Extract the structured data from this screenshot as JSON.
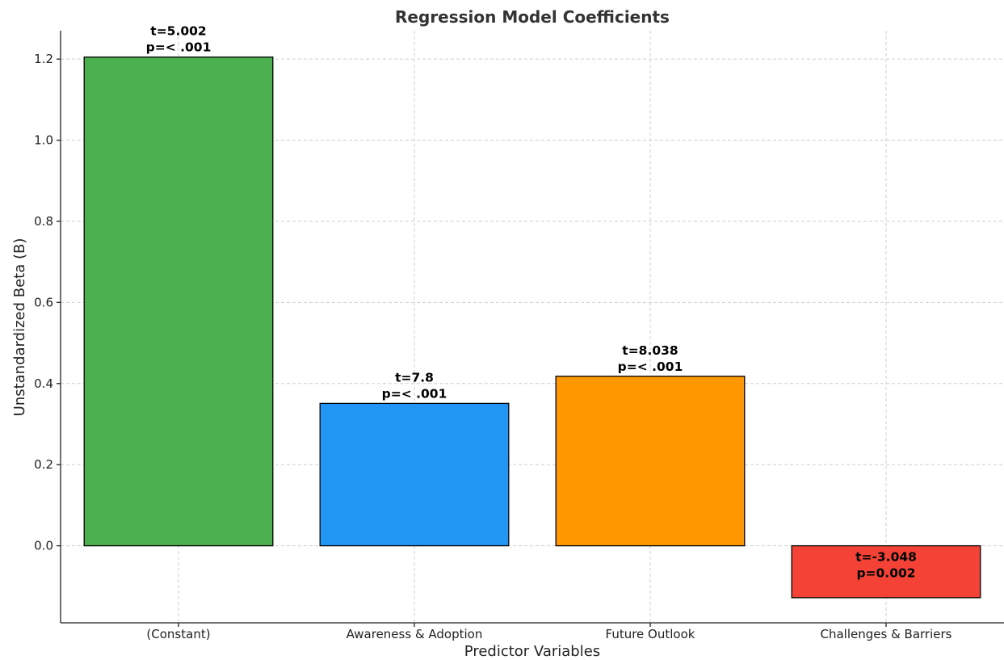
{
  "chart_data": {
    "type": "bar",
    "title": "Regression Model Coefficients",
    "xlabel": "Predictor Variables",
    "ylabel": "Unstandardized Beta (B)",
    "categories": [
      "(Constant)",
      "Awareness & Adoption",
      "Future Outlook",
      "Challenges & Barriers"
    ],
    "values": [
      1.205,
      0.351,
      0.418,
      -0.128
    ],
    "colors": [
      "#4caf50",
      "#2196f3",
      "#ff9800",
      "#f44336"
    ],
    "annotations": [
      {
        "t": "t=5.002",
        "p": "p=< .001"
      },
      {
        "t": "t=7.8",
        "p": "p=< .001"
      },
      {
        "t": "t=8.038",
        "p": "p=< .001"
      },
      {
        "t": "t=-3.048",
        "p": "p=0.002"
      }
    ],
    "ylim": [
      -0.19,
      1.27
    ],
    "yticks": [
      0.0,
      0.2,
      0.4,
      0.6,
      0.8,
      1.0,
      1.2
    ],
    "ytick_labels": [
      "0.0",
      "0.2",
      "0.4",
      "0.6",
      "0.8",
      "1.0",
      "1.2"
    ],
    "grid": true,
    "grid_style": "dashed"
  }
}
